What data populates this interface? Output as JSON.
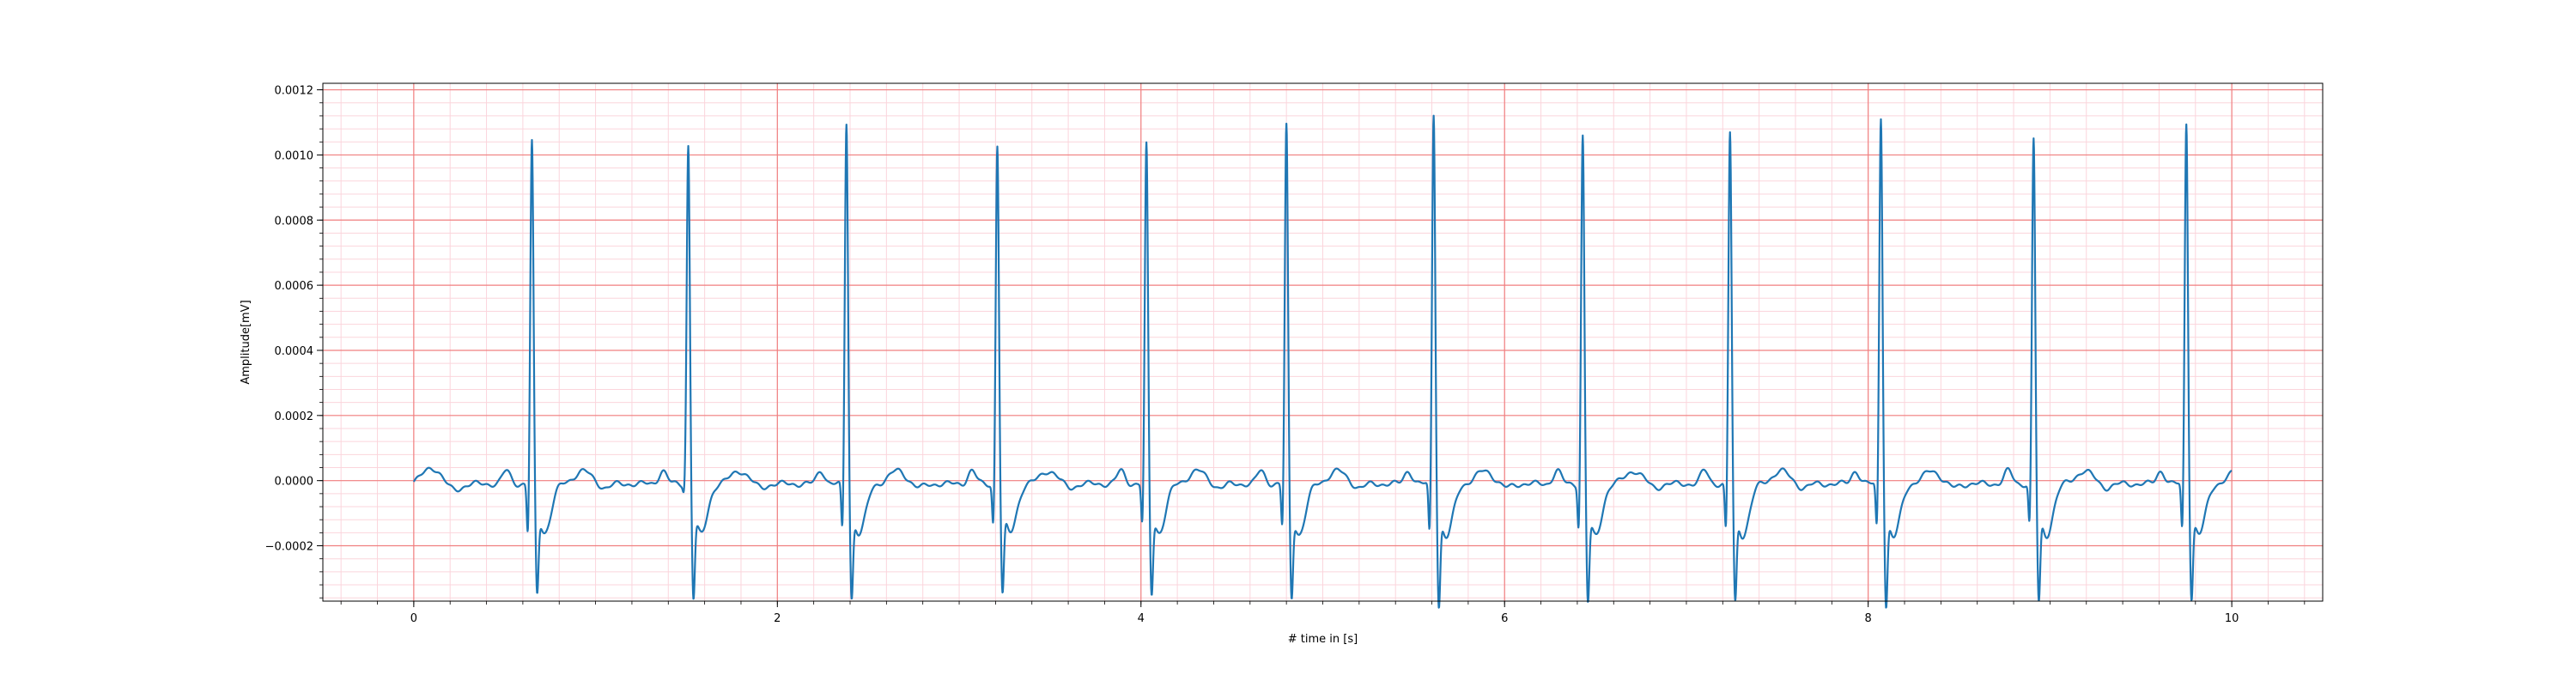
{
  "chart_data": {
    "type": "line",
    "title": "",
    "xlabel": "# time in [s]",
    "ylabel": "Amplitude[mV]",
    "xlim": [
      -0.5,
      10.5
    ],
    "ylim": [
      -0.00037,
      0.00122
    ],
    "xticks": [
      0,
      2,
      4,
      6,
      8,
      10
    ],
    "xtick_labels": [
      "0",
      "2",
      "4",
      "6",
      "8",
      "10"
    ],
    "yticks": [
      -0.0002,
      0.0,
      0.0002,
      0.0004,
      0.0006,
      0.0008,
      0.001,
      0.0012
    ],
    "ytick_labels": [
      "−0.0002",
      "0.0000",
      "0.0002",
      "0.0004",
      "0.0006",
      "0.0008",
      "0.0010",
      "0.0012"
    ],
    "grid": {
      "major": true,
      "minor": true,
      "major_x_step": 2,
      "major_y_step": 0.0002,
      "minor_x_step": 0.2,
      "minor_y_step": 4e-05,
      "major_color": "#f08080",
      "minor_color": "#fbd5dc"
    },
    "series_color": "#1f77b4",
    "baseline": -1e-05,
    "beats": [
      {
        "r_time": 0.65,
        "r_peak": 0.00106,
        "q_depth": -0.00017,
        "s_depth": -0.00027
      },
      {
        "r_time": 1.51,
        "r_peak": 0.00105,
        "q_depth": -3e-05,
        "s_depth": -0.00028
      },
      {
        "r_time": 2.38,
        "r_peak": 0.00112,
        "q_depth": -0.00016,
        "s_depth": -0.00028
      },
      {
        "r_time": 3.21,
        "r_peak": 0.00105,
        "q_depth": -0.00014,
        "s_depth": -0.00027
      },
      {
        "r_time": 4.03,
        "r_peak": 0.00105,
        "q_depth": -0.00014,
        "s_depth": -0.00027
      },
      {
        "r_time": 4.8,
        "r_peak": 0.00111,
        "q_depth": -0.00015,
        "s_depth": -0.00028
      },
      {
        "r_time": 5.61,
        "r_peak": 0.00115,
        "q_depth": -0.00017,
        "s_depth": -0.0003
      },
      {
        "r_time": 6.43,
        "r_peak": 0.00108,
        "q_depth": -0.00015,
        "s_depth": -0.00029
      },
      {
        "r_time": 7.24,
        "r_peak": 0.00109,
        "q_depth": -0.00016,
        "s_depth": -0.00029
      },
      {
        "r_time": 8.07,
        "r_peak": 0.00114,
        "q_depth": -0.00015,
        "s_depth": -0.0003
      },
      {
        "r_time": 8.91,
        "r_peak": 0.00107,
        "q_depth": -0.00014,
        "s_depth": -0.00029
      },
      {
        "r_time": 9.75,
        "r_peak": 0.00112,
        "q_depth": -0.00016,
        "s_depth": -0.00028
      }
    ],
    "t_end": 10.0
  }
}
